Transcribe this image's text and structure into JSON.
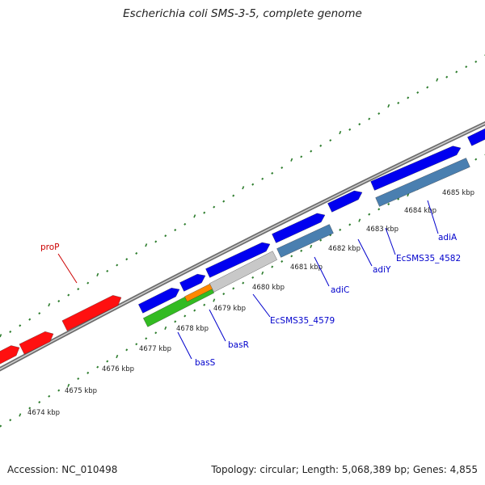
{
  "title": "Escherichia coli SMS-3-5, complete genome",
  "footer": {
    "accession": "Accession: NC_010498",
    "summary": "Topology: circular; Length: 5,068,389 bp; Genes: 4,855"
  },
  "colors": {
    "backbone": "#8a8a8a",
    "forward_cds": "#0000f0",
    "reverse_cds": "#ff1010",
    "alt_cds": "#4a7fb0",
    "grey_cds": "#c8c8c8",
    "green_cds": "#33bb22",
    "orange_cds": "#ff8800",
    "tick": "#2d7d2d",
    "label_blue": "#0000cc",
    "label_red": "#cc0000"
  },
  "ticks": [
    "4674 kbp",
    "4675 kbp",
    "4676 kbp",
    "4677 kbp",
    "4678 kbp",
    "4679 kbp",
    "4680 kbp",
    "4681 kbp",
    "4682 kbp",
    "4683 kbp",
    "4684 kbp",
    "4685 kbp"
  ],
  "genes": [
    {
      "name": "proP",
      "color_key": "label_red"
    },
    {
      "name": "basS",
      "color_key": "label_blue"
    },
    {
      "name": "basR",
      "color_key": "label_blue"
    },
    {
      "name": "EcSMS35_4579",
      "color_key": "label_blue"
    },
    {
      "name": "adiC",
      "color_key": "label_blue"
    },
    {
      "name": "adiY",
      "color_key": "label_blue"
    },
    {
      "name": "EcSMS35_4582",
      "color_key": "label_blue"
    },
    {
      "name": "adiA",
      "color_key": "label_blue"
    }
  ]
}
